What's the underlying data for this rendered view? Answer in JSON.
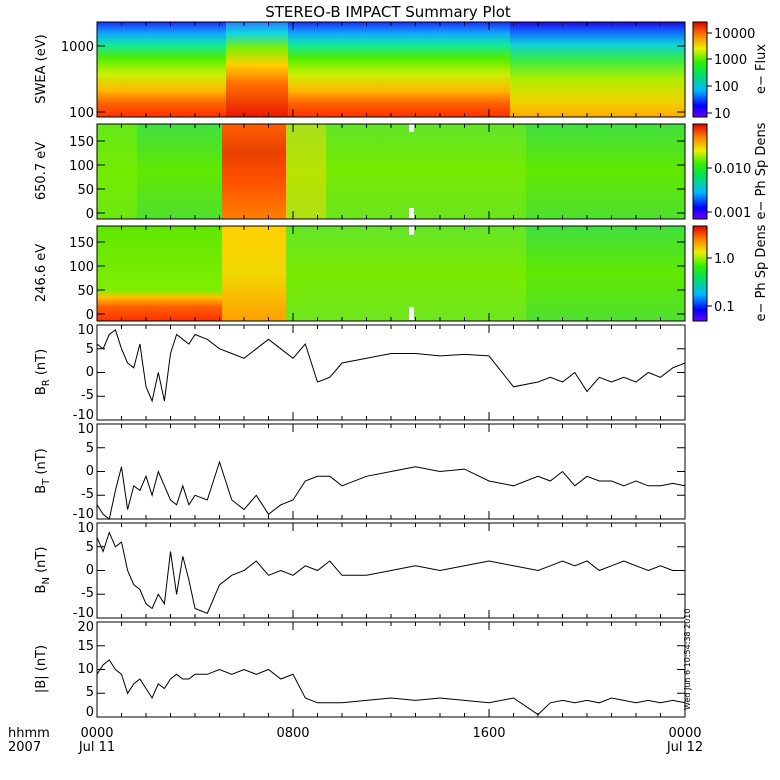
{
  "title": "STEREO-B IMPACT Summary Plot",
  "footer": {
    "hhmm": "hhmm",
    "year": "2007"
  },
  "timestamp": "Wed Jun  6 10:54:38 2010",
  "chart_data": [
    {
      "id": "swea",
      "type": "heatmap",
      "ylabel": "SWEA (eV)",
      "yscale": "log",
      "ylim": [
        90,
        2000
      ],
      "yticks": [
        "100",
        "1000"
      ],
      "colorbar": {
        "label": "e− Flux",
        "scale": "log",
        "ticks": [
          "10",
          "100",
          "1000",
          "10000"
        ]
      }
    },
    {
      "id": "pad650",
      "type": "heatmap",
      "ylabel": "650.7 eV",
      "ylim": [
        0,
        180
      ],
      "yticks": [
        "0",
        "50",
        "100",
        "150"
      ],
      "colorbar": {
        "label": "e− Ph Sp Dens",
        "scale": "log",
        "ticks": [
          "0.001",
          "0.010"
        ]
      }
    },
    {
      "id": "pad246",
      "type": "heatmap",
      "ylabel": "246.6 eV",
      "ylim": [
        0,
        180
      ],
      "yticks": [
        "0",
        "50",
        "100",
        "150"
      ],
      "colorbar": {
        "label": "e− Ph Sp Dens",
        "scale": "log",
        "ticks": [
          "0.1",
          "1.0"
        ]
      }
    },
    {
      "id": "br",
      "type": "line",
      "ylabel_main": "B",
      "ylabel_sub": "R",
      "ylabel_unit": " (nT)",
      "ylim": [
        -10,
        10
      ],
      "yticks": [
        "-10",
        "-5",
        "0",
        "5",
        "10"
      ],
      "x": [
        0,
        0.25,
        0.5,
        0.75,
        1,
        1.25,
        1.5,
        1.75,
        2,
        2.25,
        2.5,
        2.75,
        3,
        3.25,
        3.5,
        3.75,
        4,
        4.5,
        5,
        5.5,
        6,
        6.5,
        7,
        7.5,
        8,
        8.5,
        9,
        9.5,
        10,
        11,
        12,
        13,
        14,
        15,
        16,
        17,
        18,
        18.5,
        19,
        19.5,
        20,
        20.5,
        21,
        21.5,
        22,
        22.5,
        23,
        23.5,
        24
      ],
      "y": [
        6,
        5,
        8,
        9,
        5,
        2,
        1,
        6,
        -3,
        -6,
        0,
        -6,
        4,
        8,
        7,
        6,
        8,
        7,
        5,
        4,
        3,
        5,
        7,
        5,
        3,
        6,
        -2,
        -1,
        2,
        3,
        4,
        4,
        3.5,
        3.8,
        3.5,
        -3,
        -2,
        -1,
        -2,
        0,
        -4,
        -1,
        -2,
        -1,
        -2,
        0,
        -1,
        1,
        2
      ]
    },
    {
      "id": "bt",
      "type": "line",
      "ylabel_main": "B",
      "ylabel_sub": "T",
      "ylabel_unit": " (nT)",
      "ylim": [
        -10,
        10
      ],
      "yticks": [
        "-10",
        "-5",
        "0",
        "5",
        "10"
      ],
      "x": [
        0,
        0.25,
        0.5,
        0.75,
        1,
        1.25,
        1.5,
        1.75,
        2,
        2.25,
        2.5,
        2.75,
        3,
        3.25,
        3.5,
        3.75,
        4,
        4.5,
        5,
        5.5,
        6,
        6.5,
        7,
        7.5,
        8,
        8.5,
        9,
        9.5,
        10,
        11,
        12,
        13,
        14,
        15,
        16,
        17,
        18,
        18.5,
        19,
        19.5,
        20,
        20.5,
        21,
        21.5,
        22,
        22.5,
        23,
        23.5,
        24
      ],
      "y": [
        -7,
        -9,
        -10,
        -4,
        1,
        -8,
        -3,
        -4,
        -1,
        -5,
        0,
        -3,
        -6,
        -7,
        -3,
        -7,
        -5,
        -6,
        2,
        -6,
        -8,
        -5,
        -9,
        -7,
        -6,
        -2,
        -1,
        -1,
        -3,
        -1,
        0,
        1,
        0,
        0.5,
        -2,
        -3,
        -1,
        -2,
        0,
        -3,
        -1,
        -2,
        -2,
        -3,
        -2,
        -3,
        -3,
        -2.5,
        -3
      ]
    },
    {
      "id": "bn",
      "type": "line",
      "ylabel_main": "B",
      "ylabel_sub": "N",
      "ylabel_unit": " (nT)",
      "ylim": [
        -10,
        10
      ],
      "yticks": [
        "-10",
        "-5",
        "0",
        "5",
        "10"
      ],
      "x": [
        0,
        0.25,
        0.5,
        0.75,
        1,
        1.25,
        1.5,
        1.75,
        2,
        2.25,
        2.5,
        2.75,
        3,
        3.25,
        3.5,
        3.75,
        4,
        4.5,
        5,
        5.5,
        6,
        6.5,
        7,
        7.5,
        8,
        8.5,
        9,
        9.5,
        10,
        11,
        12,
        13,
        14,
        15,
        16,
        17,
        18,
        18.5,
        19,
        19.5,
        20,
        20.5,
        21,
        21.5,
        22,
        22.5,
        23,
        23.5,
        24
      ],
      "y": [
        7,
        4,
        8,
        5,
        6,
        0,
        -3,
        -4,
        -7,
        -8,
        -5,
        -7,
        4,
        -5,
        3,
        -2,
        -8,
        -9,
        -3,
        -1,
        0,
        2,
        -1,
        0,
        -1,
        1,
        0,
        2,
        -1,
        -1,
        0,
        1,
        0,
        1,
        2,
        1,
        0,
        1,
        2,
        1,
        2,
        0,
        1,
        2,
        1,
        0,
        1,
        0,
        0
      ]
    },
    {
      "id": "bmag",
      "type": "line",
      "ylabel": "|B| (nT)",
      "ylim": [
        0,
        20
      ],
      "yticks": [
        "0",
        "5",
        "10",
        "15",
        "20"
      ],
      "x": [
        0,
        0.25,
        0.5,
        0.75,
        1,
        1.25,
        1.5,
        1.75,
        2,
        2.25,
        2.5,
        2.75,
        3,
        3.25,
        3.5,
        3.75,
        4,
        4.5,
        5,
        5.5,
        6,
        6.5,
        7,
        7.5,
        8,
        8.5,
        9,
        9.5,
        10,
        11,
        12,
        13,
        14,
        15,
        16,
        17,
        18,
        18.5,
        19,
        19.5,
        20,
        20.5,
        21,
        21.5,
        22,
        22.5,
        23,
        23.5,
        24
      ],
      "y": [
        9,
        11,
        12,
        10,
        9,
        5,
        7,
        8,
        6,
        4,
        7,
        6,
        8,
        9,
        8,
        8,
        9,
        9,
        10,
        9,
        10,
        9,
        10,
        8,
        9,
        4,
        3,
        3,
        3,
        3.5,
        4,
        3.5,
        4,
        3.5,
        3,
        4,
        0.5,
        3,
        3.5,
        3,
        3.5,
        3,
        4,
        3.5,
        3,
        3.5,
        3,
        3.5,
        3
      ]
    }
  ],
  "x_axis": {
    "range_hours": [
      0,
      24
    ],
    "ticks": [
      {
        "value": 0,
        "label": "0000",
        "sublabel": "Jul 11"
      },
      {
        "value": 8,
        "label": "0800",
        "sublabel": ""
      },
      {
        "value": 16,
        "label": "1600",
        "sublabel": ""
      },
      {
        "value": 24,
        "label": "0000",
        "sublabel": "Jul 12"
      }
    ]
  }
}
